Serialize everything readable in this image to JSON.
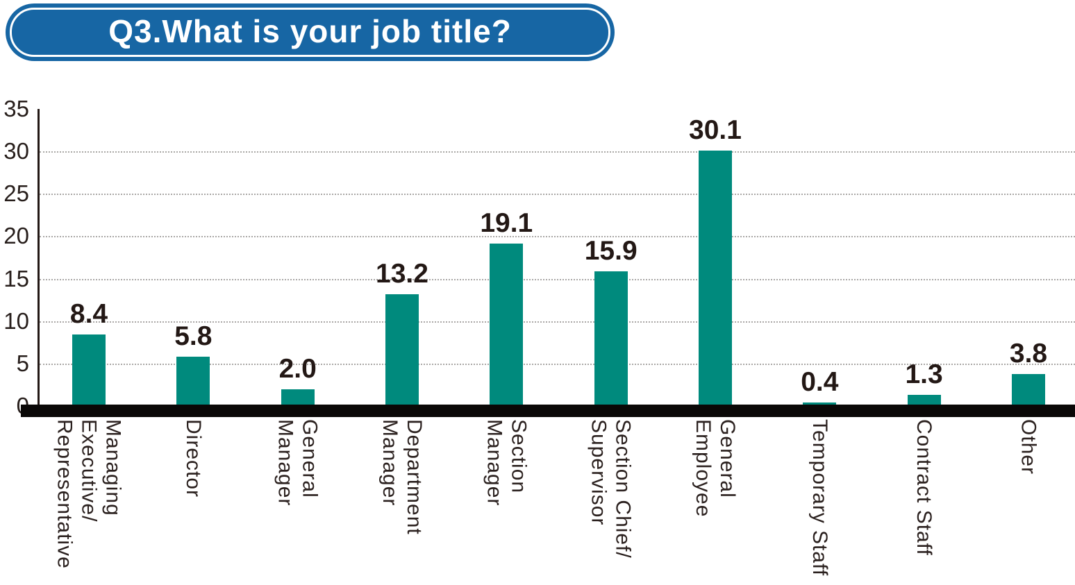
{
  "header": {
    "question": "Q3.What is your job title?"
  },
  "theme": {
    "badge_color": "#1766a4",
    "bar_color": "#008a7d",
    "axis_color": "#231815",
    "grid_color": "#a9a7a5",
    "text_color": "#231815"
  },
  "chart_data": {
    "type": "bar",
    "title": "Q3.What is your job title?",
    "categories": [
      "Managing Executive/Representative",
      "Director",
      "General Manager",
      "Department Manager",
      "Section Manager",
      "Section Chief/Supervisor",
      "General Employee",
      "Temporary Staff",
      "Contract Staff",
      "Other"
    ],
    "category_display": [
      "Managing\nExecutive/\nRepresentative",
      "Director",
      "General\nManager",
      "Department\nManager",
      "Section\nManager",
      "Section Chief/\nSupervisor",
      "General\nEmployee",
      "Temporary Staff",
      "Contract Staff",
      "Other"
    ],
    "values": [
      8.4,
      5.8,
      2.0,
      13.2,
      19.1,
      15.9,
      30.1,
      0.4,
      1.3,
      3.8
    ],
    "value_labels": [
      "8.4",
      "5.8",
      "2.0",
      "13.2",
      "19.1",
      "15.9",
      "30.1",
      "0.4",
      "1.3",
      "3.8"
    ],
    "xlabel": "",
    "ylabel": "",
    "ylim": [
      0,
      35
    ],
    "y_ticks": [
      0,
      5,
      10,
      15,
      20,
      25,
      30,
      35
    ],
    "grid": "horizontal-dotted",
    "legend": "none",
    "bar_color": "#008a7d",
    "x_label_rotation": 90
  }
}
